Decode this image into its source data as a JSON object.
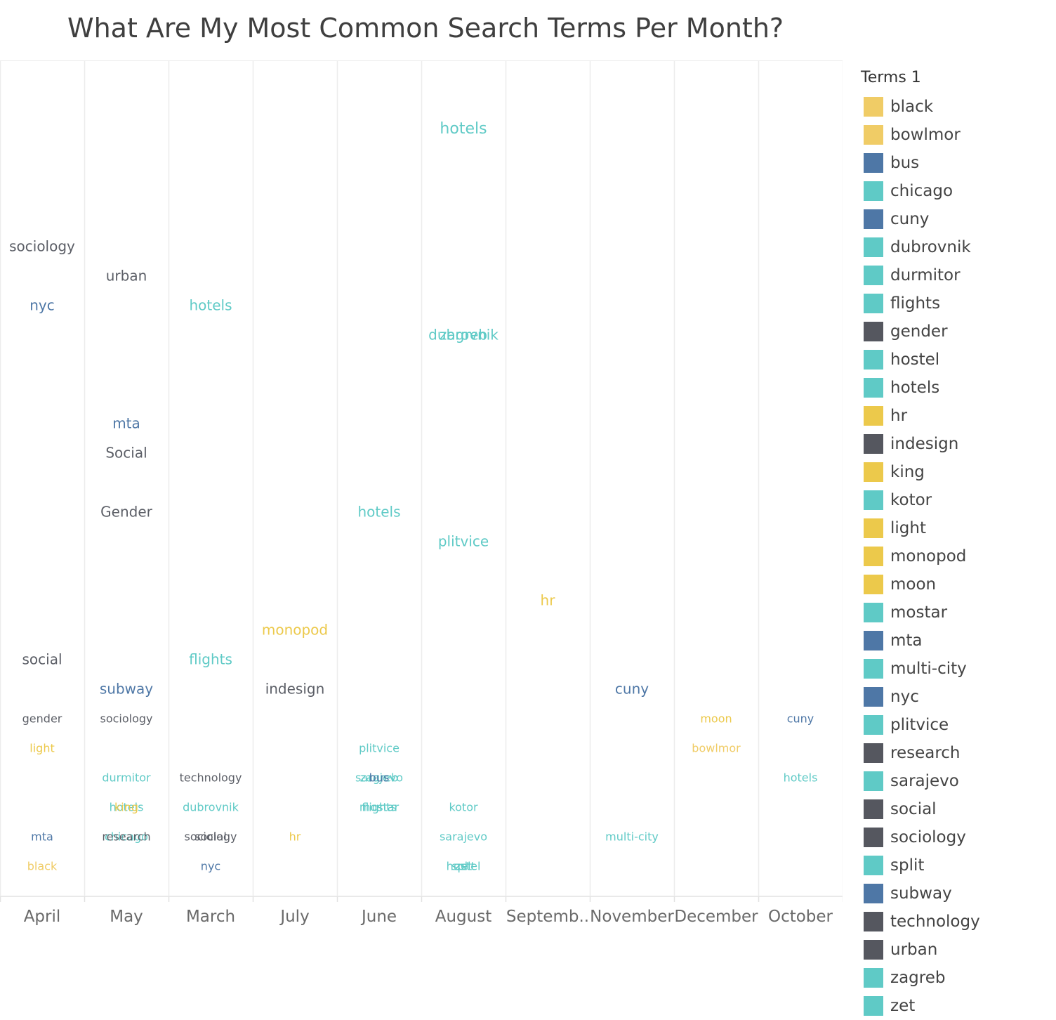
{
  "title": "What Are My Most Common Search Terms Per Month?",
  "colors": {
    "teal": "#5fcac6",
    "blue": "#4e77a6",
    "dark": "#55575f",
    "gold": "#ecc94b",
    "grid": "#ececec"
  },
  "legend": {
    "title": "Terms 1",
    "items": [
      {
        "label": "black",
        "color": "#f0cc66"
      },
      {
        "label": "bowlmor",
        "color": "#f0cc66"
      },
      {
        "label": "bus",
        "color": "#4e77a6"
      },
      {
        "label": "chicago",
        "color": "#5fcac6"
      },
      {
        "label": "cuny",
        "color": "#4e77a6"
      },
      {
        "label": "dubrovnik",
        "color": "#5fcac6"
      },
      {
        "label": "durmitor",
        "color": "#5fcac6"
      },
      {
        "label": "flights",
        "color": "#5fcac6"
      },
      {
        "label": "gender",
        "color": "#55575f"
      },
      {
        "label": "hostel",
        "color": "#5fcac6"
      },
      {
        "label": "hotels",
        "color": "#5fcac6"
      },
      {
        "label": "hr",
        "color": "#ecc94b"
      },
      {
        "label": "indesign",
        "color": "#55575f"
      },
      {
        "label": "king",
        "color": "#ecc94b"
      },
      {
        "label": "kotor",
        "color": "#5fcac6"
      },
      {
        "label": "light",
        "color": "#ecc94b"
      },
      {
        "label": "monopod",
        "color": "#ecc94b"
      },
      {
        "label": "moon",
        "color": "#ecc94b"
      },
      {
        "label": "mostar",
        "color": "#5fcac6"
      },
      {
        "label": "mta",
        "color": "#4e77a6"
      },
      {
        "label": "multi-city",
        "color": "#5fcac6"
      },
      {
        "label": "nyc",
        "color": "#4e77a6"
      },
      {
        "label": "plitvice",
        "color": "#5fcac6"
      },
      {
        "label": "research",
        "color": "#55575f"
      },
      {
        "label": "sarajevo",
        "color": "#5fcac6"
      },
      {
        "label": "social",
        "color": "#55575f"
      },
      {
        "label": "sociology",
        "color": "#55575f"
      },
      {
        "label": "split",
        "color": "#5fcac6"
      },
      {
        "label": "subway",
        "color": "#4e77a6"
      },
      {
        "label": "technology",
        "color": "#55575f"
      },
      {
        "label": "urban",
        "color": "#55575f"
      },
      {
        "label": "zagreb",
        "color": "#5fcac6"
      },
      {
        "label": "zet",
        "color": "#5fcac6"
      }
    ]
  },
  "chart_data": {
    "type": "text-scatter",
    "categories": [
      "April",
      "May",
      "March",
      "July",
      "June",
      "August",
      "Septemb..",
      "November",
      "December",
      "October"
    ],
    "x_tick_labels": [
      "April",
      "May",
      "March",
      "July",
      "June",
      "August",
      "Septemb..",
      "November",
      "December",
      "October"
    ],
    "y_scale": {
      "min": 0,
      "max": 28
    },
    "grid": "vertical",
    "legend_position": "right",
    "terms": [
      {
        "month": "April",
        "term": "sociology",
        "y": 22.0,
        "size": 20,
        "color": "#5b5e66"
      },
      {
        "month": "April",
        "term": "nyc",
        "y": 20.0,
        "size": 20,
        "color": "#4e77a6"
      },
      {
        "month": "April",
        "term": "social",
        "y": 8.0,
        "size": 20,
        "color": "#5b5e66"
      },
      {
        "month": "April",
        "term": "gender",
        "y": 6.0,
        "size": 16,
        "color": "#5b5e66"
      },
      {
        "month": "April",
        "term": "light",
        "y": 5.0,
        "size": 16,
        "color": "#ecc94b"
      },
      {
        "month": "April",
        "term": "mta",
        "y": 2.0,
        "size": 16,
        "color": "#4e77a6"
      },
      {
        "month": "April",
        "term": "black",
        "y": 1.0,
        "size": 16,
        "color": "#f0cc66"
      },
      {
        "month": "May",
        "term": "urban",
        "y": 21.0,
        "size": 20,
        "color": "#5b5e66"
      },
      {
        "month": "May",
        "term": "mta",
        "y": 16.0,
        "size": 20,
        "color": "#4e77a6"
      },
      {
        "month": "May",
        "term": "Social",
        "y": 15.0,
        "size": 20,
        "color": "#5b5e66"
      },
      {
        "month": "May",
        "term": "Gender",
        "y": 13.0,
        "size": 20,
        "color": "#5b5e66"
      },
      {
        "month": "May",
        "term": "subway",
        "y": 7.0,
        "size": 20,
        "color": "#4e77a6"
      },
      {
        "month": "May",
        "term": "sociology",
        "y": 6.0,
        "size": 16,
        "color": "#5b5e66"
      },
      {
        "month": "May",
        "term": "durmitor",
        "y": 4.0,
        "size": 16,
        "color": "#5fcac6"
      },
      {
        "month": "May",
        "term": "hotels",
        "y": 3.0,
        "size": 16,
        "color": "#5fcac6"
      },
      {
        "month": "May",
        "term": "king",
        "y": 3.0,
        "size": 16,
        "color": "#ecc94b"
      },
      {
        "month": "May",
        "term": "chicago",
        "y": 2.0,
        "size": 16,
        "color": "#5fcac6"
      },
      {
        "month": "May",
        "term": "research",
        "y": 2.0,
        "size": 16,
        "color": "#5b5e66"
      },
      {
        "month": "March",
        "term": "hotels",
        "y": 20.0,
        "size": 20,
        "color": "#5fcac6"
      },
      {
        "month": "March",
        "term": "flights",
        "y": 8.0,
        "size": 20,
        "color": "#5fcac6"
      },
      {
        "month": "March",
        "term": "technology",
        "y": 4.0,
        "size": 16,
        "color": "#5b5e66"
      },
      {
        "month": "March",
        "term": "dubrovnik",
        "y": 3.0,
        "size": 16,
        "color": "#5fcac6"
      },
      {
        "month": "March",
        "term": "social",
        "y": 2.0,
        "size": 16,
        "color": "#5b5e66"
      },
      {
        "month": "March",
        "term": "sociology",
        "y": 2.0,
        "size": 16,
        "color": "#5b5e66"
      },
      {
        "month": "March",
        "term": "nyc",
        "y": 1.0,
        "size": 16,
        "color": "#4e77a6"
      },
      {
        "month": "July",
        "term": "monopod",
        "y": 9.0,
        "size": 20,
        "color": "#ecc94b"
      },
      {
        "month": "July",
        "term": "indesign",
        "y": 7.0,
        "size": 20,
        "color": "#5b5e66"
      },
      {
        "month": "July",
        "term": "hr",
        "y": 2.0,
        "size": 16,
        "color": "#ecc94b"
      },
      {
        "month": "June",
        "term": "hotels",
        "y": 13.0,
        "size": 20,
        "color": "#5fcac6"
      },
      {
        "month": "June",
        "term": "plitvice",
        "y": 5.0,
        "size": 16,
        "color": "#5fcac6"
      },
      {
        "month": "June",
        "term": "sarajevo",
        "y": 4.0,
        "size": 16,
        "color": "#5fcac6"
      },
      {
        "month": "June",
        "term": "zagreb",
        "y": 4.0,
        "size": 16,
        "color": "#5fcac6"
      },
      {
        "month": "June",
        "term": "bus",
        "y": 4.0,
        "size": 16,
        "color": "#4e77a6"
      },
      {
        "month": "June",
        "term": "mostar",
        "y": 3.0,
        "size": 16,
        "color": "#5fcac6"
      },
      {
        "month": "June",
        "term": "flights",
        "y": 3.0,
        "size": 16,
        "color": "#5fcac6"
      },
      {
        "month": "August",
        "term": "hotels",
        "y": 26.0,
        "size": 22,
        "color": "#5fcac6"
      },
      {
        "month": "August",
        "term": "dubrovnik",
        "y": 19.0,
        "size": 20,
        "color": "#5fcac6"
      },
      {
        "month": "August",
        "term": "zagreb",
        "y": 19.0,
        "size": 20,
        "color": "#5fcac6"
      },
      {
        "month": "August",
        "term": "plitvice",
        "y": 12.0,
        "size": 20,
        "color": "#5fcac6"
      },
      {
        "month": "August",
        "term": "kotor",
        "y": 3.0,
        "size": 16,
        "color": "#5fcac6"
      },
      {
        "month": "August",
        "term": "sarajevo",
        "y": 2.0,
        "size": 16,
        "color": "#5fcac6"
      },
      {
        "month": "August",
        "term": "hostel",
        "y": 1.0,
        "size": 16,
        "color": "#5fcac6"
      },
      {
        "month": "August",
        "term": "split",
        "y": 1.0,
        "size": 16,
        "color": "#5fcac6"
      },
      {
        "month": "August",
        "term": "zet",
        "y": 1.0,
        "size": 16,
        "color": "#5fcac6"
      },
      {
        "month": "Septemb..",
        "term": "hr",
        "y": 10.0,
        "size": 20,
        "color": "#ecc94b"
      },
      {
        "month": "November",
        "term": "cuny",
        "y": 7.0,
        "size": 20,
        "color": "#4e77a6"
      },
      {
        "month": "November",
        "term": "multi-city",
        "y": 2.0,
        "size": 16,
        "color": "#5fcac6"
      },
      {
        "month": "December",
        "term": "moon",
        "y": 6.0,
        "size": 16,
        "color": "#ecc94b"
      },
      {
        "month": "December",
        "term": "bowlmor",
        "y": 5.0,
        "size": 16,
        "color": "#f0cc66"
      },
      {
        "month": "October",
        "term": "cuny",
        "y": 6.0,
        "size": 16,
        "color": "#4e77a6"
      },
      {
        "month": "October",
        "term": "hotels",
        "y": 4.0,
        "size": 16,
        "color": "#5fcac6"
      }
    ]
  }
}
